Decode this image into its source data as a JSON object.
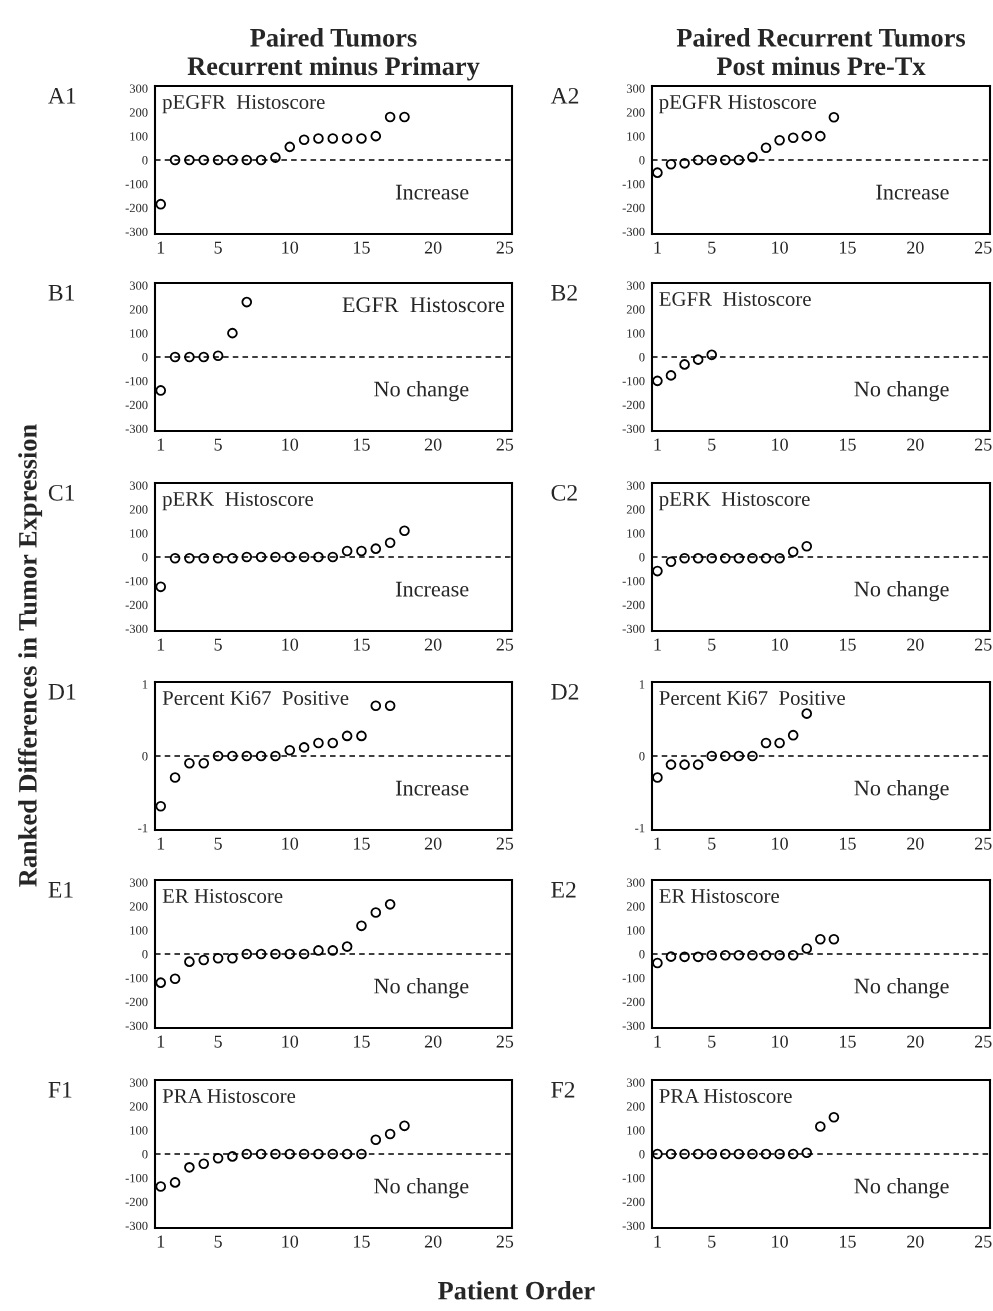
{
  "chart_data": [
    {
      "type": "scatter",
      "title": "Paired Tumors\nRecurrent minus Primary",
      "annotations": [
        "A1",
        "pEGFR  Histoscore",
        "Increase"
      ],
      "x": [
        1,
        2,
        3,
        4,
        5,
        6,
        7,
        8,
        9,
        10,
        11,
        12,
        13,
        14,
        15,
        16,
        17,
        18
      ],
      "values": [
        -185,
        0,
        0,
        0,
        0,
        0,
        0,
        0,
        10,
        55,
        85,
        90,
        90,
        90,
        90,
        100,
        180,
        180
      ],
      "color": "#000000",
      "marker": "circle",
      "xlim": [
        0.6,
        25.5
      ],
      "xticks": [
        1,
        5,
        10,
        15,
        20,
        25
      ],
      "ylim": [
        -310,
        310
      ],
      "yticks": [
        -300,
        -200,
        -100,
        0,
        100,
        200,
        300
      ],
      "ref_lines": [
        {
          "axis": "y",
          "value": 0,
          "line_style": "dashed"
        }
      ]
    },
    {
      "type": "scatter",
      "title": "Paired Recurrent Tumors\nPost minus Pre-Tx",
      "annotations": [
        "A2",
        "pEGFR Histoscore",
        "Increase"
      ],
      "x": [
        1,
        2,
        3,
        4,
        5,
        6,
        7,
        8,
        9,
        10,
        11,
        12,
        13,
        14
      ],
      "values": [
        -53,
        -18,
        -14,
        0,
        0,
        0,
        0,
        12,
        51,
        83,
        93,
        100,
        100,
        179
      ],
      "color": "#000000",
      "marker": "circle",
      "xlim": [
        0.6,
        25.5
      ],
      "xticks": [
        1,
        5,
        10,
        15,
        20,
        25
      ],
      "ylim": [
        -310,
        310
      ],
      "yticks": [
        -300,
        -200,
        -100,
        0,
        100,
        200,
        300
      ],
      "ref_lines": [
        {
          "axis": "y",
          "value": 0,
          "line_style": "dashed"
        }
      ]
    },
    {
      "type": "scatter",
      "annotations": [
        "B1",
        "EGFR  Histoscore",
        "No change"
      ],
      "x": [
        1,
        2,
        3,
        4,
        5,
        6,
        7
      ],
      "values": [
        -140,
        0,
        0,
        0,
        5,
        100,
        230
      ],
      "color": "#000000",
      "marker": "circle",
      "xlim": [
        0.6,
        25.5
      ],
      "xticks": [
        1,
        5,
        10,
        15,
        20,
        25
      ],
      "ylim": [
        -310,
        310
      ],
      "yticks": [
        -300,
        -200,
        -100,
        0,
        100,
        200,
        300
      ],
      "ref_lines": [
        {
          "axis": "y",
          "value": 0,
          "line_style": "dashed"
        }
      ]
    },
    {
      "type": "scatter",
      "annotations": [
        "B2",
        "EGFR  Histoscore",
        "No change"
      ],
      "x": [
        1,
        2,
        3,
        4,
        5
      ],
      "values": [
        -100,
        -77,
        -31,
        -11,
        9
      ],
      "color": "#000000",
      "marker": "circle",
      "xlim": [
        0.6,
        25.5
      ],
      "xticks": [
        1,
        5,
        10,
        15,
        20,
        25
      ],
      "ylim": [
        -310,
        310
      ],
      "yticks": [
        -300,
        -200,
        -100,
        0,
        100,
        200,
        300
      ],
      "ref_lines": [
        {
          "axis": "y",
          "value": 0,
          "line_style": "dashed"
        }
      ]
    },
    {
      "type": "scatter",
      "annotations": [
        "C1",
        "pERK  Histoscore",
        "Increase"
      ],
      "x": [
        1,
        2,
        3,
        4,
        5,
        6,
        7,
        8,
        9,
        10,
        11,
        12,
        13,
        14,
        15,
        16,
        17,
        18
      ],
      "values": [
        -125,
        -5,
        -5,
        -5,
        -5,
        -5,
        0,
        0,
        0,
        0,
        0,
        0,
        0,
        25,
        25,
        35,
        60,
        110
      ],
      "color": "#000000",
      "marker": "circle",
      "xlim": [
        0.6,
        25.5
      ],
      "xticks": [
        1,
        5,
        10,
        15,
        20,
        25
      ],
      "ylim": [
        -310,
        310
      ],
      "yticks": [
        -300,
        -200,
        -100,
        0,
        100,
        200,
        300
      ],
      "ref_lines": [
        {
          "axis": "y",
          "value": 0,
          "line_style": "dashed"
        }
      ]
    },
    {
      "type": "scatter",
      "annotations": [
        "C2",
        "pERK  Histoscore",
        "No change"
      ],
      "x": [
        1,
        2,
        3,
        4,
        5,
        6,
        7,
        8,
        9,
        10,
        11,
        12
      ],
      "values": [
        -59,
        -20,
        -5,
        -5,
        -5,
        -5,
        -5,
        -5,
        -5,
        -5,
        22,
        45
      ],
      "color": "#000000",
      "marker": "circle",
      "xlim": [
        0.6,
        25.5
      ],
      "xticks": [
        1,
        5,
        10,
        15,
        20,
        25
      ],
      "ylim": [
        -310,
        310
      ],
      "yticks": [
        -300,
        -200,
        -100,
        0,
        100,
        200,
        300
      ],
      "ref_lines": [
        {
          "axis": "y",
          "value": 0,
          "line_style": "dashed"
        }
      ]
    },
    {
      "type": "scatter",
      "ylabel": "Ranked Differences in Tumor Expression",
      "annotations": [
        "D1",
        "Percent Ki67  Positive",
        "Increase"
      ],
      "x": [
        1,
        2,
        3,
        4,
        5,
        6,
        7,
        8,
        9,
        10,
        11,
        12,
        13,
        14,
        15,
        16,
        17
      ],
      "values": [
        -0.7,
        -0.3,
        -0.1,
        -0.1,
        0,
        0,
        0,
        0,
        0,
        0.08,
        0.12,
        0.18,
        0.18,
        0.28,
        0.28,
        0.7,
        0.7
      ],
      "color": "#000000",
      "marker": "circle",
      "xlim": [
        0.6,
        25.5
      ],
      "xticks": [
        1,
        5,
        10,
        15,
        20,
        25
      ],
      "ylim": [
        -1.03,
        1.03
      ],
      "yticks": [
        -1,
        0,
        1
      ],
      "ref_lines": [
        {
          "axis": "y",
          "value": 0,
          "line_style": "dashed"
        }
      ]
    },
    {
      "type": "scatter",
      "annotations": [
        "D2",
        "Percent Ki67  Positive",
        "No change"
      ],
      "x": [
        1,
        2,
        3,
        4,
        5,
        6,
        7,
        8,
        9,
        10,
        11,
        12
      ],
      "values": [
        -0.3,
        -0.12,
        -0.12,
        -0.12,
        0,
        0,
        0,
        0,
        0.18,
        0.18,
        0.29,
        0.59
      ],
      "color": "#000000",
      "marker": "circle",
      "xlim": [
        0.6,
        25.5
      ],
      "xticks": [
        1,
        5,
        10,
        15,
        20,
        25
      ],
      "ylim": [
        -1.03,
        1.03
      ],
      "yticks": [
        -1,
        0,
        1
      ],
      "ref_lines": [
        {
          "axis": "y",
          "value": 0,
          "line_style": "dashed"
        }
      ]
    },
    {
      "type": "scatter",
      "annotations": [
        "E1",
        "ER Histoscore",
        "No change"
      ],
      "x": [
        1,
        2,
        3,
        4,
        5,
        6,
        7,
        8,
        9,
        10,
        11,
        12,
        13,
        14,
        15,
        16,
        17
      ],
      "values": [
        -120,
        -104,
        -32,
        -25,
        -18,
        -18,
        0,
        0,
        0,
        0,
        0,
        15,
        15,
        31,
        118,
        174,
        208
      ],
      "color": "#000000",
      "marker": "circle",
      "xlim": [
        0.6,
        25.5
      ],
      "xticks": [
        1,
        5,
        10,
        15,
        20,
        25
      ],
      "ylim": [
        -310,
        310
      ],
      "yticks": [
        -300,
        -200,
        -100,
        0,
        100,
        200,
        300
      ],
      "ref_lines": [
        {
          "axis": "y",
          "value": 0,
          "line_style": "dashed"
        }
      ]
    },
    {
      "type": "scatter",
      "annotations": [
        "E2",
        "ER Histoscore",
        "No change"
      ],
      "x": [
        1,
        2,
        3,
        4,
        5,
        6,
        7,
        8,
        9,
        10,
        11,
        12,
        13,
        14
      ],
      "values": [
        -38,
        -11,
        -12,
        -12,
        -5,
        -5,
        -5,
        -5,
        -5,
        -5,
        -5,
        23,
        62,
        62
      ],
      "color": "#000000",
      "marker": "circle",
      "xlim": [
        0.6,
        25.5
      ],
      "xticks": [
        1,
        5,
        10,
        15,
        20,
        25
      ],
      "ylim": [
        -310,
        310
      ],
      "yticks": [
        -300,
        -200,
        -100,
        0,
        100,
        200,
        300
      ],
      "ref_lines": [
        {
          "axis": "y",
          "value": 0,
          "line_style": "dashed"
        }
      ]
    },
    {
      "type": "scatter",
      "xlabel": "Patient Order",
      "annotations": [
        "F1",
        "PRA Histoscore",
        "No change"
      ],
      "x": [
        1,
        2,
        3,
        4,
        5,
        6,
        7,
        8,
        9,
        10,
        11,
        12,
        13,
        14,
        15,
        16,
        17,
        18
      ],
      "values": [
        -136,
        -119,
        -56,
        -41,
        -18,
        -10,
        0,
        0,
        0,
        0,
        0,
        0,
        0,
        0,
        0,
        60,
        84,
        118
      ],
      "color": "#000000",
      "marker": "circle",
      "xlim": [
        0.6,
        25.5
      ],
      "xticks": [
        1,
        5,
        10,
        15,
        20,
        25
      ],
      "ylim": [
        -310,
        310
      ],
      "yticks": [
        -300,
        -200,
        -100,
        0,
        100,
        200,
        300
      ],
      "ref_lines": [
        {
          "axis": "y",
          "value": 0,
          "line_style": "dashed"
        }
      ]
    },
    {
      "type": "scatter",
      "annotations": [
        "F2",
        "PRA Histoscore",
        "No change"
      ],
      "x": [
        1,
        2,
        3,
        4,
        5,
        6,
        7,
        8,
        9,
        10,
        11,
        12,
        13,
        14
      ],
      "values": [
        0,
        0,
        0,
        0,
        0,
        0,
        0,
        0,
        0,
        0,
        0,
        5,
        115,
        154
      ],
      "color": "#000000",
      "marker": "circle",
      "xlim": [
        0.6,
        25.5
      ],
      "xticks": [
        1,
        5,
        10,
        15,
        20,
        25
      ],
      "ylim": [
        -310,
        310
      ],
      "yticks": [
        -300,
        -200,
        -100,
        0,
        100,
        200,
        300
      ],
      "ref_lines": [
        {
          "axis": "y",
          "value": 0,
          "line_style": "dashed"
        }
      ]
    }
  ]
}
